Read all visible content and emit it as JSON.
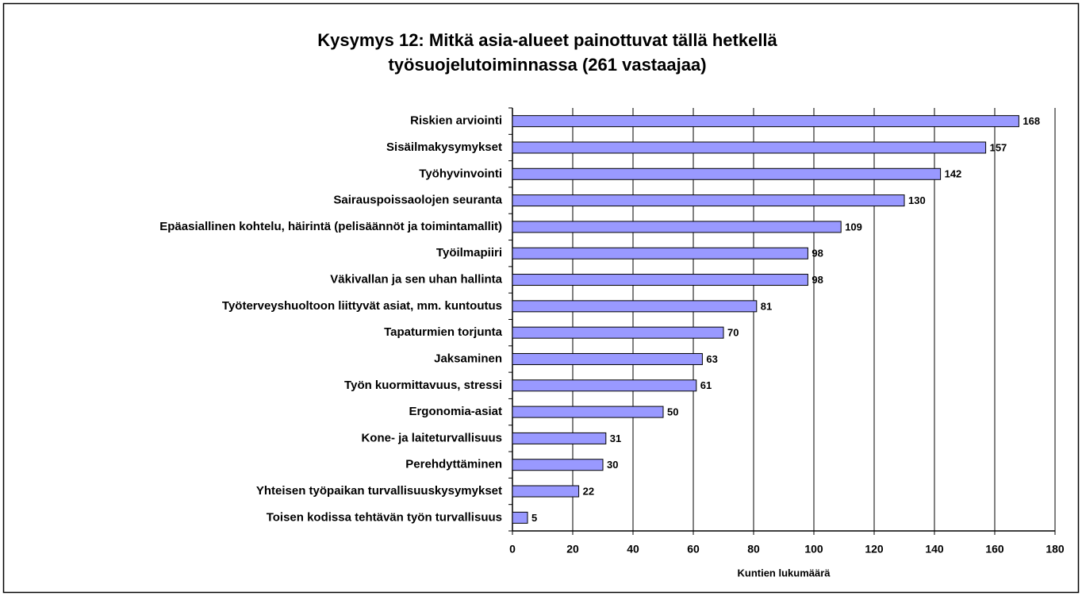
{
  "chart_data": {
    "type": "bar",
    "orientation": "horizontal",
    "title": [
      "Kysymys 12: Mitkä asia-alueet painottuvat tällä hetkellä",
      "työsuojelutoiminnassa (261 vastaajaa)"
    ],
    "xlabel": "Kuntien lukumäärä",
    "categories": [
      "Riskien arviointi",
      "Sisäilmakysymykset",
      "Työhyvinvointi",
      "Sairauspoissaolojen seuranta",
      "Epäasiallinen kohtelu, häirintä (pelisäännöt ja toimintamallit)",
      "Työilmapiiri",
      "Väkivallan ja sen uhan hallinta",
      "Työterveyshuoltoon liittyvät asiat, mm. kuntoutus",
      "Tapaturmien torjunta",
      "Jaksaminen",
      "Työn kuormittavuus, stressi",
      "Ergonomia-asiat",
      "Kone- ja laiteturvallisuus",
      "Perehdyttäminen",
      "Yhteisen työpaikan turvallisuuskysymykset",
      "Toisen kodissa tehtävän työn turvallisuus"
    ],
    "values": [
      168,
      157,
      142,
      130,
      109,
      98,
      98,
      81,
      70,
      63,
      61,
      50,
      31,
      30,
      22,
      5
    ],
    "color": "#9999ff",
    "xlim": [
      0,
      180
    ],
    "xticks": [
      0,
      20,
      40,
      60,
      80,
      100,
      120,
      140,
      160,
      180
    ],
    "grid": true
  }
}
